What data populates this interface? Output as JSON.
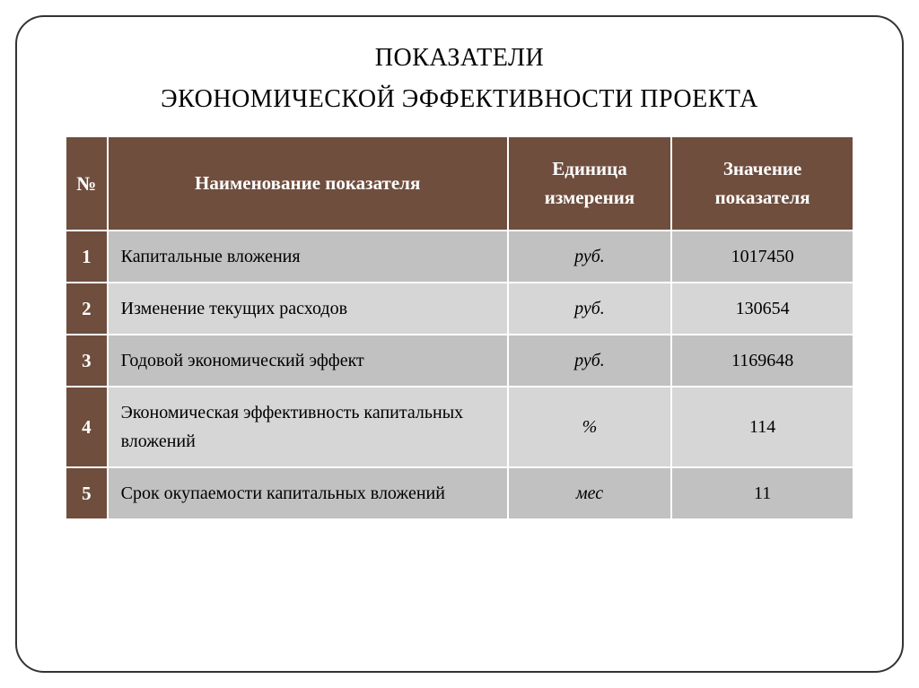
{
  "title": {
    "line1": "ПОКАЗАТЕЛИ",
    "line2": "ЭКОНОМИЧЕСКОЙ ЭФФЕКТИВНОСТИ ПРОЕКТА"
  },
  "table": {
    "columns": {
      "num": "№",
      "name": "Наименование показателя",
      "unit": "Единица измерения",
      "value": "Значение показателя"
    },
    "rows": [
      {
        "num": "1",
        "name": "Капитальные вложения",
        "unit": "руб.",
        "value": "1017450",
        "unit_italic": false
      },
      {
        "num": "2",
        "name": "Изменение текущих расходов",
        "unit": "руб.",
        "value": "130654",
        "unit_italic": false
      },
      {
        "num": "3",
        "name": "Годовой экономический эффект",
        "unit": "руб.",
        "value": "1169648",
        "unit_italic": false
      },
      {
        "num": "4",
        "name": "Экономическая эффективность капитальных вложений",
        "unit": "%",
        "value": "114",
        "unit_italic": true
      },
      {
        "num": "5",
        "name": "Срок окупаемости капитальных вложений",
        "unit": "мес",
        "value": "11",
        "unit_italic": false
      }
    ],
    "styling": {
      "header_bg": "#6f4e3e",
      "header_fg": "#ffffff",
      "num_col_bg": "#6f4e3e",
      "num_col_fg": "#ffffff",
      "row_odd_bg": "#c1c1c1",
      "row_even_bg": "#d6d6d6",
      "border_color": "#ffffff",
      "outer_border_color": "#000000",
      "header_fontsize": 21,
      "cell_fontsize": 20,
      "column_widths": {
        "num": 46,
        "name": 440,
        "unit": 180,
        "value": 200
      }
    }
  },
  "frame": {
    "border_color": "#333333",
    "border_radius": 32,
    "background": "#ffffff"
  }
}
